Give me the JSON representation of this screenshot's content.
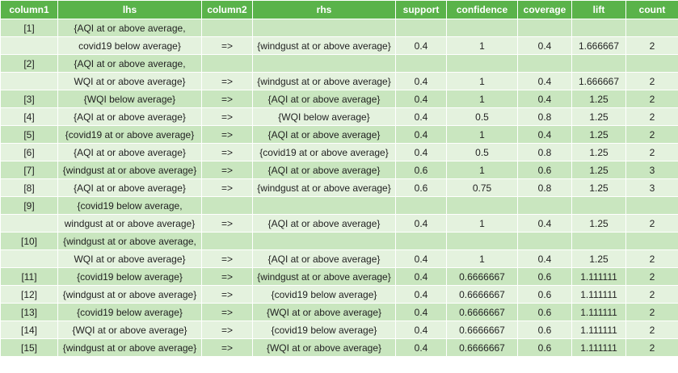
{
  "table": {
    "headers": [
      "column1",
      "lhs",
      "column2",
      "rhs",
      "support",
      "confidence",
      "coverage",
      "lift",
      "count"
    ],
    "rows": [
      [
        "[1]",
        "{AQI at or above average,",
        "",
        "",
        "",
        "",
        "",
        "",
        ""
      ],
      [
        "",
        "covid19 below average}",
        "=>",
        "{windgust at or above average}",
        "0.4",
        "1",
        "0.4",
        "1.666667",
        "2"
      ],
      [
        "[2]",
        "{AQI at or above average,",
        "",
        "",
        "",
        "",
        "",
        "",
        ""
      ],
      [
        "",
        "WQI at or above average}",
        "=>",
        "{windgust at or above average}",
        "0.4",
        "1",
        "0.4",
        "1.666667",
        "2"
      ],
      [
        "[3]",
        "{WQI below average}",
        "=>",
        "{AQI at or above average}",
        "0.4",
        "1",
        "0.4",
        "1.25",
        "2"
      ],
      [
        "[4]",
        "{AQI at or above average}",
        "=>",
        "{WQI below average}",
        "0.4",
        "0.5",
        "0.8",
        "1.25",
        "2"
      ],
      [
        "[5]",
        "{covid19 at or above average}",
        "=>",
        "{AQI at or above average}",
        "0.4",
        "1",
        "0.4",
        "1.25",
        "2"
      ],
      [
        "[6]",
        "{AQI at or above average}",
        "=>",
        "{covid19 at or above average}",
        "0.4",
        "0.5",
        "0.8",
        "1.25",
        "2"
      ],
      [
        "[7]",
        "{windgust at or above average}",
        "=>",
        "{AQI at or above average}",
        "0.6",
        "1",
        "0.6",
        "1.25",
        "3"
      ],
      [
        "[8]",
        "{AQI at or above average}",
        "=>",
        "{windgust at or above average}",
        "0.6",
        "0.75",
        "0.8",
        "1.25",
        "3"
      ],
      [
        "[9]",
        "{covid19 below average,",
        "",
        "",
        "",
        "",
        "",
        "",
        ""
      ],
      [
        "",
        "windgust at or above average}",
        "=>",
        "{AQI at or above average}",
        "0.4",
        "1",
        "0.4",
        "1.25",
        "2"
      ],
      [
        "[10]",
        "{windgust at or above average,",
        "",
        "",
        "",
        "",
        "",
        "",
        ""
      ],
      [
        "",
        "WQI at or above average}",
        "=>",
        "{AQI at or above average}",
        "0.4",
        "1",
        "0.4",
        "1.25",
        "2"
      ],
      [
        "[11]",
        "{covid19 below average}",
        "=>",
        "{windgust at or above average}",
        "0.4",
        "0.6666667",
        "0.6",
        "1.111111",
        "2"
      ],
      [
        "[12]",
        "{windgust at or above average}",
        "=>",
        "{covid19 below average}",
        "0.4",
        "0.6666667",
        "0.6",
        "1.111111",
        "2"
      ],
      [
        "[13]",
        "{covid19 below average}",
        "=>",
        "{WQI at or above average}",
        "0.4",
        "0.6666667",
        "0.6",
        "1.111111",
        "2"
      ],
      [
        "[14]",
        "{WQI at or above average}",
        "=>",
        "{covid19 below average}",
        "0.4",
        "0.6666667",
        "0.6",
        "1.111111",
        "2"
      ],
      [
        "[15]",
        "{windgust at or above average}",
        "=>",
        "{WQI at or above average}",
        "0.4",
        "0.6666667",
        "0.6",
        "1.111111",
        "2"
      ]
    ]
  },
  "colors": {
    "header_bg": "#5ab34a",
    "header_text": "#ffffff",
    "row_odd_bg": "#c9e6bf",
    "row_even_bg": "#e4f2de"
  }
}
